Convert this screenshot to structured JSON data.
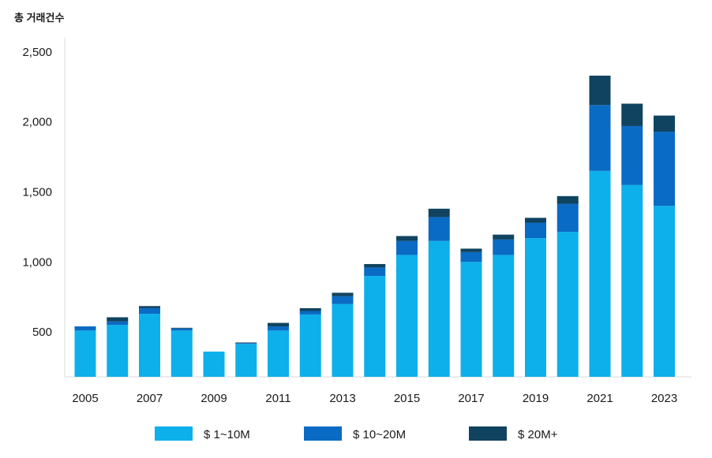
{
  "chart_data": {
    "type": "bar",
    "stacked": true,
    "title": "",
    "ylabel": "총 거래건수",
    "xlabel": "",
    "categories": [
      "2005",
      "2006",
      "2007",
      "2008",
      "2009",
      "2010",
      "2011",
      "2012",
      "2013",
      "2014",
      "2015",
      "2016",
      "2017",
      "2018",
      "2019",
      "2020",
      "2021",
      "2022",
      "2023"
    ],
    "x_tick_labels": [
      "2005",
      "2007",
      "2009",
      "2011",
      "2013",
      "2015",
      "2017",
      "2019",
      "2021",
      "2023"
    ],
    "y_tick_values": [
      500,
      1000,
      1500,
      2000,
      2500
    ],
    "y_tick_labels": [
      "500",
      "1,000",
      "1,500",
      "2,000",
      "2,500"
    ],
    "ylim": [
      180,
      2600
    ],
    "grid": false,
    "legend_position": "bottom",
    "series": [
      {
        "name": "$ 1~10M",
        "color": "#0db0ea",
        "values": [
          510,
          550,
          630,
          510,
          360,
          415,
          510,
          625,
          700,
          900,
          1050,
          1150,
          1000,
          1050,
          1170,
          1215,
          1650,
          1550,
          1400
        ]
      },
      {
        "name": "$ 10~20M",
        "color": "#0a6bc4",
        "values": [
          30,
          25,
          40,
          15,
          0,
          5,
          30,
          25,
          55,
          60,
          100,
          170,
          70,
          110,
          110,
          200,
          470,
          420,
          530
        ]
      },
      {
        "name": "$ 20M+",
        "color": "#10435f",
        "values": [
          0,
          30,
          15,
          5,
          0,
          5,
          25,
          20,
          25,
          25,
          35,
          60,
          25,
          35,
          35,
          55,
          210,
          160,
          115
        ]
      }
    ]
  }
}
